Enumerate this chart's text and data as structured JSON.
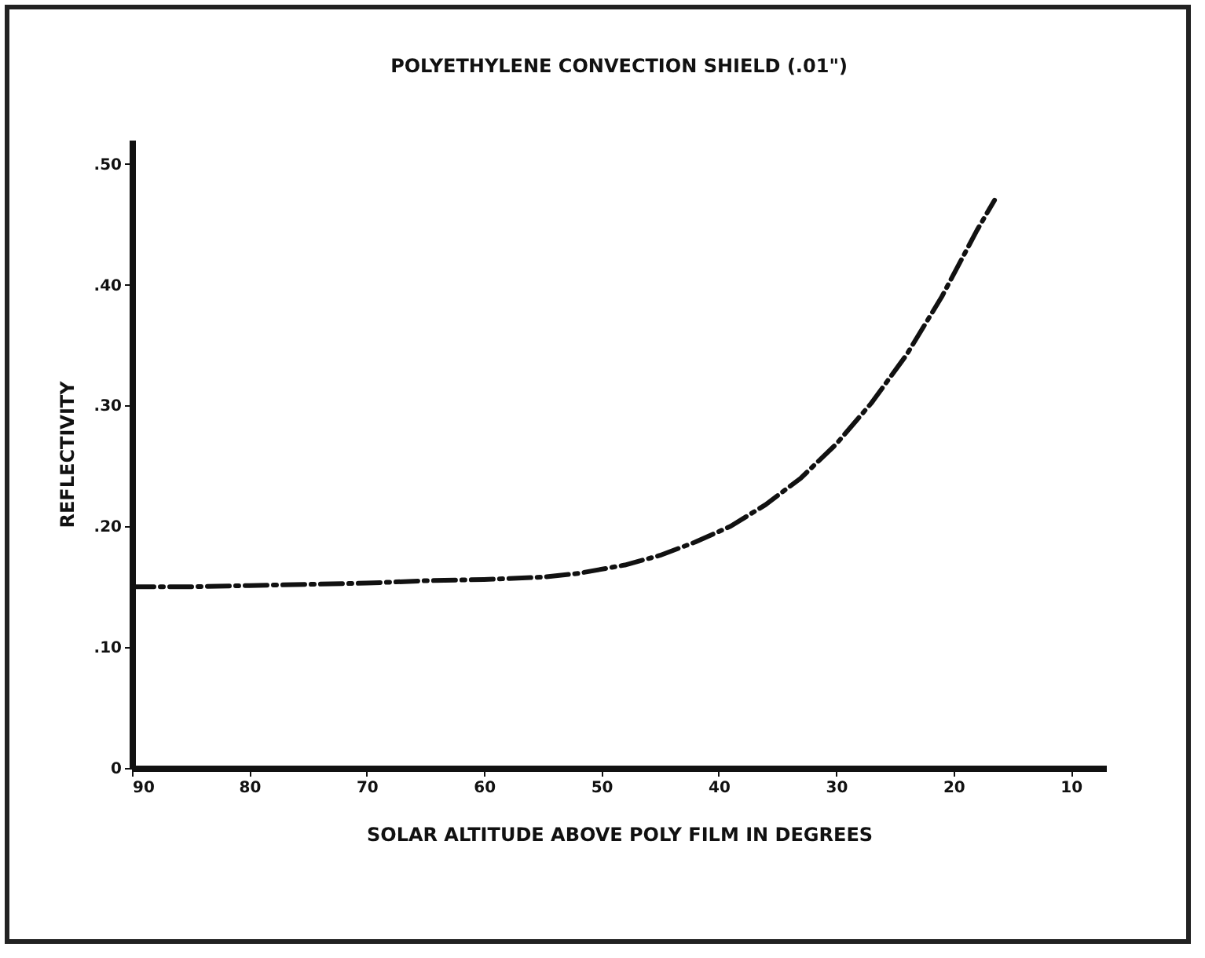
{
  "chart_data": {
    "type": "line",
    "title": "POLYETHYLENE   CONVECTION   SHIELD   (.01\")",
    "xlabel": "SOLAR   ALTITUDE   ABOVE   POLY   FILM   IN   DEGREES",
    "ylabel": "REFLECTIVITY",
    "x": [
      90,
      85,
      80,
      75,
      70,
      65,
      60,
      55,
      52,
      48,
      45,
      42,
      39,
      36,
      33,
      30,
      27,
      24,
      21,
      18,
      16.5
    ],
    "series": [
      {
        "color": "#111111",
        "values": [
          0.15,
          0.15,
          0.151,
          0.152,
          0.153,
          0.155,
          0.156,
          0.158,
          0.161,
          0.168,
          0.176,
          0.187,
          0.2,
          0.218,
          0.24,
          0.268,
          0.302,
          0.342,
          0.39,
          0.445,
          0.47
        ]
      }
    ],
    "xlim": [
      90,
      7
    ],
    "xticks": [
      90,
      80,
      70,
      60,
      50,
      40,
      30,
      20,
      10
    ],
    "ylim": [
      0,
      0.52
    ],
    "yticks": [
      0,
      {
        "value": 0.1,
        "label": ".10"
      },
      {
        "value": 0.2,
        "label": ".20"
      },
      {
        "value": 0.3,
        "label": ".30"
      },
      {
        "value": 0.4,
        "label": ".40"
      },
      {
        "value": 0.5,
        "label": ".50"
      }
    ],
    "grid": false,
    "legend": false,
    "line_style": "dashed"
  }
}
